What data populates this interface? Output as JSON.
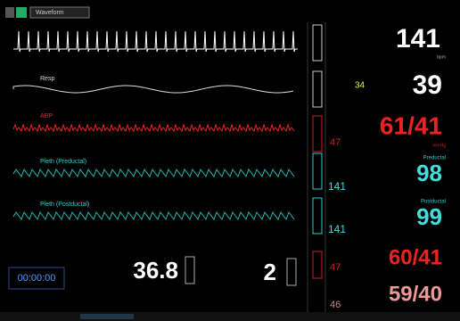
{
  "header": {
    "tab": "Waveform"
  },
  "waveforms": [
    {
      "label": "Resp"
    },
    {
      "label": "ABP"
    },
    {
      "label": "Pleth (Preductal)"
    },
    {
      "label": "Pleth (Postductal)"
    }
  ],
  "parameters": {
    "hr": {
      "value": "141",
      "unit": "bpm"
    },
    "resp": {
      "value": "39",
      "secondary": "34"
    },
    "abp": {
      "value": "61/41",
      "unit": "mmHg",
      "secondary": "47"
    },
    "spo2_pre": {
      "label": "Preductal",
      "value": "98",
      "secondary": "141"
    },
    "spo2_post": {
      "label": "Postductal",
      "value": "99",
      "secondary": "141"
    },
    "nibp": {
      "value": "60/41",
      "secondary": "47"
    },
    "art2": {
      "value": "59/40",
      "secondary": "46"
    },
    "temp": {
      "value": "36.8"
    },
    "other": {
      "value": "2"
    },
    "timer": {
      "value": "00:00:00"
    }
  }
}
